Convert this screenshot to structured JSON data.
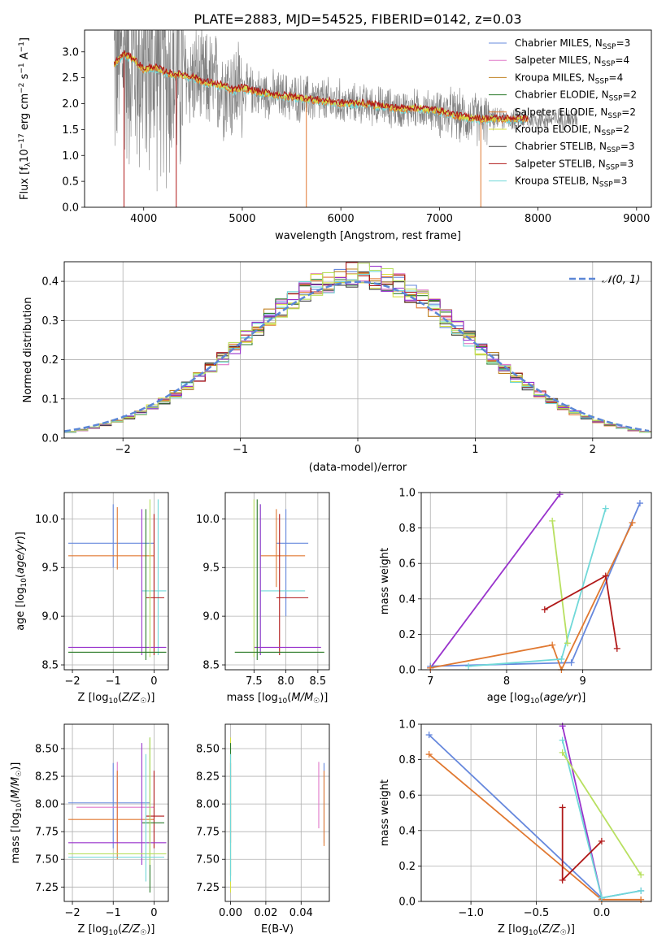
{
  "figure": {
    "title": "PLATE=2883, MJD=54525, FIBERID=0142, z=0.03"
  },
  "colors": {
    "data": "#808080",
    "Chabrier MILES": "#6688dd",
    "Salpeter MILES": "#e078c8",
    "Kroupa MILES": "#c08020",
    "Chabrier ELODIE": "#2a7a2a",
    "Salpeter ELODIE": "#e07830",
    "Kroupa ELODIE": "#d8e040",
    "Chabrier STELIB": "#404040",
    "Salpeter STELIB": "#b01818",
    "Kroupa STELIB": "#70d8d8",
    "purple": "#9933cc",
    "lime": "#b8e060"
  },
  "chart_data": [
    {
      "id": "spectrum",
      "type": "line",
      "xlabel": "wavelength [Angstrom, rest frame]",
      "ylabel": "Flux [f_λ 10^-17 erg cm^-2 s^-1 A^-1]",
      "xlim": [
        3400,
        9150
      ],
      "ylim": [
        0,
        3.42
      ],
      "xticks": [
        4000,
        5000,
        6000,
        7000,
        8000,
        9000
      ],
      "yticks": [
        0.0,
        0.5,
        1.0,
        1.5,
        2.0,
        2.5,
        3.0
      ],
      "grid": false,
      "legend_position": "right",
      "legend": [
        {
          "label": "Chabrier MILES, N",
          "sub": "SSP",
          "suffix": "=3"
        },
        {
          "label": "Salpeter MILES, N",
          "sub": "SSP",
          "suffix": "=4"
        },
        {
          "label": "Kroupa MILES, N",
          "sub": "SSP",
          "suffix": "=4"
        },
        {
          "label": "Chabrier ELODIE, N",
          "sub": "SSP",
          "suffix": "=2"
        },
        {
          "label": "Salpeter ELODIE, N",
          "sub": "SSP",
          "suffix": "=2"
        },
        {
          "label": "Kroupa ELODIE, N",
          "sub": "SSP",
          "suffix": "=2"
        },
        {
          "label": "Chabrier STELIB, N",
          "sub": "SSP",
          "suffix": "=3"
        },
        {
          "label": "Salpeter STELIB, N",
          "sub": "SSP",
          "suffix": "=3"
        },
        {
          "label": "Kroupa STELIB, N",
          "sub": "SSP",
          "suffix": "=3"
        }
      ],
      "continuum": {
        "x": [
          3700,
          3800,
          3900,
          4000,
          4100,
          4200,
          4300,
          4400,
          4500,
          4600,
          4700,
          4800,
          4900,
          5000,
          5200,
          5400,
          5600,
          5800,
          6000,
          6200,
          6400,
          6600,
          6800,
          7000,
          7200,
          7400,
          7600,
          7800
        ],
        "y": [
          2.75,
          2.95,
          2.85,
          2.65,
          2.7,
          2.62,
          2.55,
          2.55,
          2.5,
          2.42,
          2.38,
          2.35,
          2.25,
          2.3,
          2.2,
          2.15,
          2.1,
          2.05,
          2.0,
          2.0,
          1.95,
          1.9,
          1.9,
          1.85,
          1.75,
          1.7,
          1.7,
          1.7
        ]
      }
    },
    {
      "id": "residuals",
      "type": "step",
      "xlabel": "(data-model)/error",
      "ylabel": "Normed distribution",
      "xlim": [
        -2.5,
        2.5
      ],
      "ylim": [
        0,
        0.45
      ],
      "xticks": [
        -2,
        -1,
        0,
        1,
        2
      ],
      "yticks": [
        0.0,
        0.1,
        0.2,
        0.3,
        0.4
      ],
      "grid": true,
      "legend_position": "top-right",
      "legend_label": "𝒩(0, 1)",
      "normal_curve": {
        "mean": 0,
        "sigma": 1
      }
    },
    {
      "id": "age_vs_Z",
      "type": "errorbar",
      "xlabel": "Z [log10(Z/Z☉)]",
      "ylabel": "age [log10(age/yr)]",
      "xlim": [
        -2.2,
        0.35
      ],
      "ylim": [
        8.45,
        10.27
      ],
      "xticks": [
        -2,
        -1,
        0
      ],
      "yticks": [
        8.5,
        9.0,
        9.5,
        10.0
      ],
      "grid": true,
      "points": [
        {
          "series": "Chabrier MILES",
          "x": -1.0,
          "y": 9.75,
          "xlo": -2.1,
          "xhi": 0.0,
          "ylo": 9.5,
          "yhi": 10.15
        },
        {
          "series": "Salpeter ELODIE",
          "x": -0.9,
          "y": 9.62,
          "xlo": -2.1,
          "xhi": 0.0,
          "ylo": 9.48,
          "yhi": 10.12
        },
        {
          "series": "Kroupa STELIB",
          "x": 0.1,
          "y": 9.26,
          "xlo": -0.3,
          "xhi": 0.3,
          "ylo": 8.6,
          "yhi": 10.2
        },
        {
          "series": "Salpeter STELIB",
          "x": 0.0,
          "y": 9.19,
          "xlo": -0.2,
          "xhi": 0.25,
          "ylo": 8.6,
          "yhi": 10.05
        },
        {
          "series": "purple",
          "x": -0.3,
          "y": 8.68,
          "xlo": -2.1,
          "xhi": 0.3,
          "ylo": 8.6,
          "yhi": 10.1
        },
        {
          "series": "lime",
          "x": -0.1,
          "y": 8.63,
          "xlo": -2.1,
          "xhi": 0.3,
          "ylo": 8.58,
          "yhi": 10.2
        },
        {
          "series": "Chabrier ELODIE",
          "x": -0.2,
          "y": 8.63,
          "xlo": -2.1,
          "xhi": 0.3,
          "ylo": 8.55,
          "yhi": 10.1
        }
      ]
    },
    {
      "id": "age_vs_mass",
      "type": "errorbar",
      "xlabel": "mass [log10(M/M☉)]",
      "ylabel": "",
      "xlim": [
        7.05,
        8.68
      ],
      "ylim": [
        8.45,
        10.27
      ],
      "xticks": [
        7.5,
        8.0,
        8.5
      ],
      "yticks": [
        8.5,
        9.0,
        9.5,
        10.0
      ],
      "grid": true,
      "points": [
        {
          "series": "Chabrier MILES",
          "x": 8.0,
          "y": 9.75,
          "xlo": 7.85,
          "xhi": 8.35,
          "ylo": 9.0,
          "yhi": 10.1
        },
        {
          "series": "Salpeter ELODIE",
          "x": 7.85,
          "y": 9.62,
          "xlo": 7.6,
          "xhi": 8.3,
          "ylo": 9.3,
          "yhi": 10.1
        },
        {
          "series": "Kroupa STELIB",
          "x": 7.6,
          "y": 9.26,
          "xlo": 7.6,
          "xhi": 8.3,
          "ylo": 8.6,
          "yhi": 10.15
        },
        {
          "series": "Salpeter STELIB",
          "x": 7.9,
          "y": 9.19,
          "xlo": 7.85,
          "xhi": 8.35,
          "ylo": 8.6,
          "yhi": 10.05
        },
        {
          "series": "purple",
          "x": 7.6,
          "y": 8.68,
          "xlo": 7.5,
          "xhi": 8.55,
          "ylo": 8.6,
          "yhi": 10.15
        },
        {
          "series": "lime",
          "x": 7.5,
          "y": 8.63,
          "xlo": 7.2,
          "xhi": 8.6,
          "ylo": 8.58,
          "yhi": 10.2
        },
        {
          "series": "Chabrier ELODIE",
          "x": 7.55,
          "y": 8.63,
          "xlo": 7.2,
          "xhi": 8.6,
          "ylo": 8.55,
          "yhi": 10.2
        }
      ]
    },
    {
      "id": "weight_vs_age",
      "type": "line",
      "xlabel": "age [log10(age/yr)]",
      "ylabel": "mass weight",
      "xlim": [
        6.88,
        9.9
      ],
      "ylim": [
        0,
        1.0
      ],
      "xticks": [
        7,
        8,
        9
      ],
      "yticks": [
        0.0,
        0.2,
        0.4,
        0.6,
        0.8,
        1.0
      ],
      "grid": true,
      "series": [
        {
          "color": "purple",
          "x": [
            7.0,
            8.7
          ],
          "y": [
            0.01,
            0.99
          ]
        },
        {
          "color": "Chabrier MILES",
          "x": [
            7.0,
            8.85,
            9.75
          ],
          "y": [
            0.02,
            0.04,
            0.94
          ]
        },
        {
          "color": "Salpeter ELODIE",
          "x": [
            7.0,
            8.6,
            8.72,
            9.65
          ],
          "y": [
            0.01,
            0.14,
            0.0,
            0.83
          ]
        },
        {
          "color": "Kroupa STELIB",
          "x": [
            7.5,
            8.72,
            9.3
          ],
          "y": [
            0.02,
            0.06,
            0.91
          ]
        },
        {
          "color": "lime",
          "x": [
            8.6,
            8.8
          ],
          "y": [
            0.84,
            0.15
          ]
        },
        {
          "color": "Salpeter STELIB",
          "x": [
            8.5,
            9.3,
            9.45
          ],
          "y": [
            0.34,
            0.53,
            0.12
          ]
        }
      ]
    },
    {
      "id": "mass_vs_Z",
      "type": "errorbar",
      "xlabel": "Z [log10(Z/Z☉)]",
      "ylabel": "mass [log10(M/M☉)]",
      "xlim": [
        -2.2,
        0.35
      ],
      "ylim": [
        7.12,
        8.72
      ],
      "xticks": [
        -2,
        -1,
        0
      ],
      "yticks": [
        7.25,
        7.5,
        7.75,
        8.0,
        8.25,
        8.5
      ],
      "grid": true,
      "points": [
        {
          "series": "Chabrier MILES",
          "x": -1.0,
          "y": 8.01,
          "xlo": -2.1,
          "xhi": -0.1,
          "ylo": 7.6,
          "yhi": 8.37
        },
        {
          "series": "Salpeter MILES",
          "x": -0.9,
          "y": 7.97,
          "xlo": -1.9,
          "xhi": 0.0,
          "ylo": 7.65,
          "yhi": 8.38
        },
        {
          "series": "Salpeter ELODIE",
          "x": -0.9,
          "y": 7.86,
          "xlo": -2.1,
          "xhi": 0.0,
          "ylo": 7.5,
          "yhi": 8.3
        },
        {
          "series": "Salpeter STELIB",
          "x": 0.0,
          "y": 7.89,
          "xlo": -0.2,
          "xhi": 0.25,
          "ylo": 7.6,
          "yhi": 8.3
        },
        {
          "series": "Chabrier ELODIE",
          "x": -0.1,
          "y": 7.83,
          "xlo": -0.3,
          "xhi": 0.25,
          "ylo": 7.2,
          "yhi": 8.6
        },
        {
          "series": "purple",
          "x": -0.3,
          "y": 7.65,
          "xlo": -2.1,
          "xhi": 0.3,
          "ylo": 7.45,
          "yhi": 8.55
        },
        {
          "series": "lime",
          "x": -0.1,
          "y": 7.55,
          "xlo": -2.1,
          "xhi": 0.3,
          "ylo": 7.45,
          "yhi": 8.6
        },
        {
          "series": "Kroupa STELIB",
          "x": -0.2,
          "y": 7.52,
          "xlo": -2.1,
          "xhi": 0.25,
          "ylo": 7.3,
          "yhi": 8.45
        }
      ]
    },
    {
      "id": "mass_vs_ebv",
      "type": "errorbar",
      "xlabel": "E(B-V)",
      "ylabel": "",
      "xlim": [
        -0.003,
        0.056
      ],
      "ylim": [
        7.12,
        8.72
      ],
      "xticks": [
        0.0,
        0.02,
        0.04
      ],
      "yticks": [
        7.25,
        7.5,
        7.75,
        8.0,
        8.25,
        8.5
      ],
      "grid": true,
      "points": [
        {
          "series": "Chabrier MILES",
          "x": 0.053,
          "y": 8.0,
          "xlo": 0.053,
          "xhi": 0.053,
          "ylo": 7.65,
          "yhi": 8.37
        },
        {
          "series": "Salpeter MILES",
          "x": 0.05,
          "y": 8.0,
          "xlo": 0.05,
          "xhi": 0.05,
          "ylo": 7.78,
          "yhi": 8.38
        },
        {
          "series": "Salpeter ELODIE",
          "x": 0.053,
          "y": 7.85,
          "xlo": 0.053,
          "xhi": 0.053,
          "ylo": 7.62,
          "yhi": 8.3
        },
        {
          "series": "Kroupa ELODIE",
          "x": 0.0,
          "y": 7.6,
          "xlo": 0.0,
          "xhi": 0.0,
          "ylo": 7.2,
          "yhi": 8.6
        },
        {
          "series": "Salpeter STELIB",
          "x": 0.0,
          "y": 8.3,
          "xlo": 0.0,
          "xhi": 0.0,
          "ylo": 7.65,
          "yhi": 8.37
        },
        {
          "series": "Chabrier ELODIE",
          "x": 0.0,
          "y": 7.9,
          "xlo": 0.0,
          "xhi": 0.0,
          "ylo": 7.35,
          "yhi": 8.55
        },
        {
          "series": "Kroupa STELIB",
          "x": 0.0,
          "y": 7.6,
          "xlo": 0.0,
          "xhi": 0.0,
          "ylo": 7.3,
          "yhi": 8.45
        }
      ]
    },
    {
      "id": "weight_vs_Z",
      "type": "line",
      "xlabel": "Z [log10(Z/Z☉)]",
      "ylabel": "mass weight",
      "xlim": [
        -1.38,
        0.38
      ],
      "ylim": [
        0,
        1.0
      ],
      "xticks": [
        -1.0,
        -0.5,
        0.0
      ],
      "yticks": [
        0.0,
        0.2,
        0.4,
        0.6,
        0.8,
        1.0
      ],
      "grid": true,
      "series": [
        {
          "color": "Chabrier MILES",
          "x": [
            -1.32,
            0.0,
            0.3
          ],
          "y": [
            0.94,
            0.02,
            0.06
          ]
        },
        {
          "color": "Salpeter ELODIE",
          "x": [
            -1.32,
            0.0,
            0.3
          ],
          "y": [
            0.83,
            0.01,
            0.01
          ]
        },
        {
          "color": "purple",
          "x": [
            -0.3,
            0.0
          ],
          "y": [
            0.99,
            0.02
          ]
        },
        {
          "color": "Kroupa STELIB",
          "x": [
            -0.3,
            0.0,
            0.3
          ],
          "y": [
            0.91,
            0.02,
            0.06
          ]
        },
        {
          "color": "lime",
          "x": [
            -0.3,
            0.3
          ],
          "y": [
            0.84,
            0.15
          ]
        },
        {
          "color": "Salpeter STELIB",
          "x": [
            -0.3,
            -0.3,
            0.0
          ],
          "y": [
            0.53,
            0.12,
            0.34
          ]
        }
      ]
    }
  ]
}
